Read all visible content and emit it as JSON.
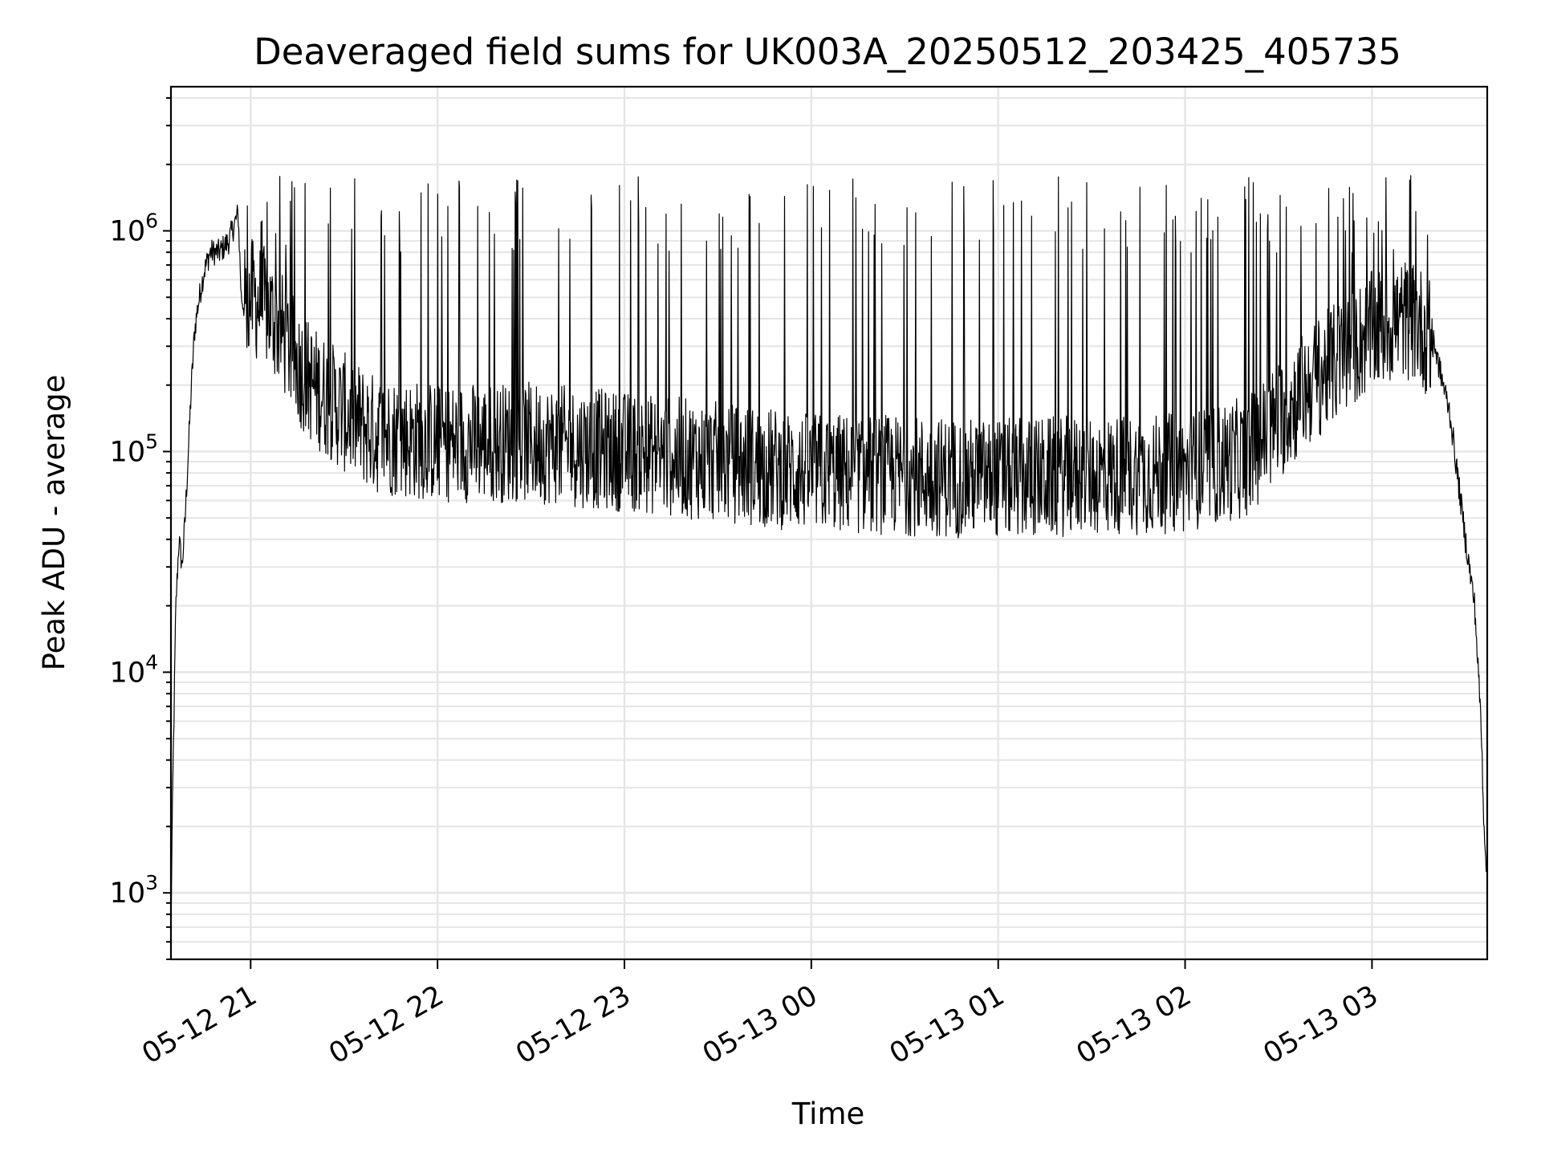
{
  "chart_data": {
    "type": "line",
    "title": "Deaveraged field sums for UK003A_20250512_203425_405735",
    "xlabel": "Time",
    "ylabel": "Peak ADU - average",
    "yscale": "log",
    "xlim": [
      "2025-05-12 20:34:25",
      "2025-05-13 03:37:00"
    ],
    "ylim": [
      500,
      4500000
    ],
    "x_ticks": [
      {
        "value": "2025-05-12 21:00",
        "label": "05-12 21"
      },
      {
        "value": "2025-05-12 22:00",
        "label": "05-12 22"
      },
      {
        "value": "2025-05-12 23:00",
        "label": "05-12 23"
      },
      {
        "value": "2025-05-13 00:00",
        "label": "05-13 00"
      },
      {
        "value": "2025-05-13 01:00",
        "label": "05-13 01"
      },
      {
        "value": "2025-05-13 02:00",
        "label": "05-13 02"
      },
      {
        "value": "2025-05-13 03:00",
        "label": "05-13 03"
      }
    ],
    "y_ticks": [
      {
        "value": 1000,
        "base": "10",
        "exp": "3"
      },
      {
        "value": 10000,
        "base": "10",
        "exp": "4"
      },
      {
        "value": 100000,
        "base": "10",
        "exp": "5"
      },
      {
        "value": 1000000,
        "base": "10",
        "exp": "6"
      }
    ],
    "grid": true,
    "line_color": "#000000",
    "grid_color": "#e5e5e5",
    "series": [
      {
        "x": [
          "2025-05-12 20:34:25",
          "2025-05-12 20:35",
          "2025-05-12 20:36",
          "2025-05-12 20:37",
          "2025-05-12 20:38",
          "2025-05-12 20:39",
          "2025-05-12 20:40",
          "2025-05-12 20:41",
          "2025-05-12 20:42",
          "2025-05-12 20:43",
          "2025-05-12 20:45",
          "2025-05-12 20:47",
          "2025-05-12 20:50",
          "2025-05-12 20:53",
          "2025-05-12 20:56",
          "2025-05-12 20:57",
          "2025-05-12 20:58",
          "2025-05-12 21:00",
          "2025-05-12 21:05",
          "2025-05-12 21:10",
          "2025-05-12 21:15",
          "2025-05-12 21:20",
          "2025-05-12 21:30",
          "2025-05-12 21:40",
          "2025-05-12 22:00",
          "2025-05-12 22:30",
          "2025-05-12 23:00",
          "2025-05-12 23:30",
          "2025-05-13 00:00",
          "2025-05-13 00:30",
          "2025-05-13 01:00",
          "2025-05-13 01:30",
          "2025-05-13 02:00",
          "2025-05-13 02:20",
          "2025-05-13 02:40",
          "2025-05-13 03:00",
          "2025-05-13 03:10",
          "2025-05-13 03:15",
          "2025-05-13 03:20",
          "2025-05-13 03:25",
          "2025-05-13 03:30",
          "2025-05-13 03:33",
          "2025-05-13 03:35",
          "2025-05-13 03:36",
          "2025-05-13 03:37"
        ],
        "values": [
          700,
          3000,
          20000,
          40000,
          30000,
          50000,
          100000,
          200000,
          350000,
          450000,
          650000,
          800000,
          800000,
          900000,
          1200000,
          500000,
          450000,
          500000,
          450000,
          350000,
          250000,
          200000,
          150000,
          120000,
          110000,
          110000,
          100000,
          90000,
          80000,
          78000,
          75000,
          78000,
          80000,
          95000,
          200000,
          350000,
          400000,
          380000,
          300000,
          150000,
          40000,
          20000,
          6000,
          2000,
          1200
        ]
      }
    ]
  }
}
